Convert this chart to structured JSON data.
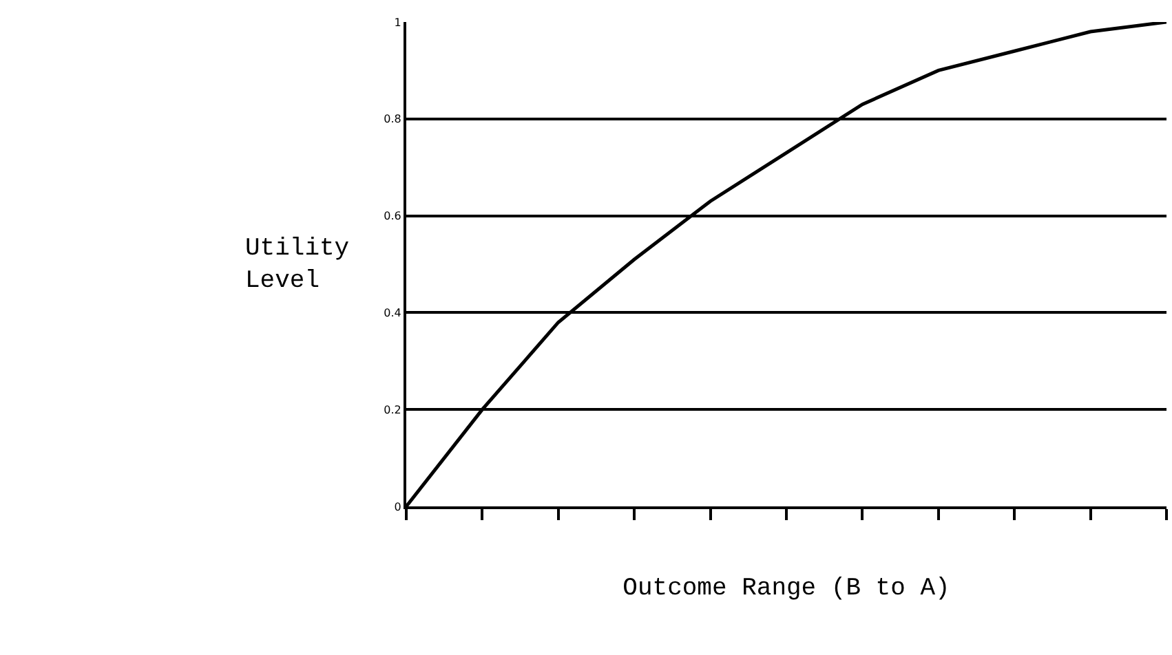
{
  "chart_data": {
    "type": "line",
    "xlabel": "Outcome Range (B to A)",
    "ylabel": "Utility Level",
    "categories": [
      null,
      null,
      null,
      null,
      null,
      null,
      null,
      null,
      null,
      null,
      null
    ],
    "series": [
      {
        "color": "#000000",
        "values": [
          0,
          0.2,
          0.38,
          0.51,
          0.63,
          0.73,
          0.83,
          0.9,
          0.94,
          0.98,
          1.0
        ]
      }
    ],
    "ylim": [
      0,
      1
    ],
    "yticks": [
      0,
      0.2,
      0.4,
      0.6,
      0.8,
      1
    ],
    "grid": "y",
    "legend": false,
    "marker": "none",
    "line_style": "solid",
    "tick_labels": "y"
  }
}
